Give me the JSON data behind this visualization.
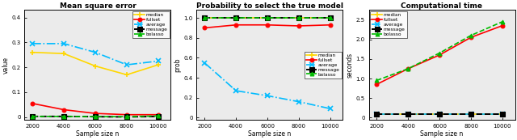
{
  "x": [
    2000,
    4000,
    6000,
    8000,
    10000
  ],
  "mse": {
    "median": [
      0.26,
      0.255,
      0.205,
      0.17,
      0.21
    ],
    "fullset": [
      0.055,
      0.03,
      0.015,
      0.01,
      0.01
    ],
    "average": [
      0.295,
      0.295,
      0.26,
      0.21,
      0.225
    ],
    "message": [
      0.003,
      0.003,
      0.002,
      0.001,
      0.003
    ],
    "bolasso": [
      0.003,
      0.003,
      0.002,
      0.002,
      0.005
    ]
  },
  "prob": {
    "median": [
      1.0,
      1.0,
      1.0,
      1.0,
      1.0
    ],
    "fullset": [
      0.9,
      0.93,
      0.93,
      0.92,
      0.93
    ],
    "average": [
      0.55,
      0.27,
      0.22,
      0.16,
      0.09
    ],
    "message": [
      1.0,
      1.0,
      1.0,
      1.0,
      1.0
    ],
    "bolasso": [
      1.0,
      1.0,
      1.0,
      1.0,
      1.0
    ]
  },
  "time": {
    "median": [
      0.1,
      0.1,
      0.1,
      0.1,
      0.1
    ],
    "fullset": [
      0.85,
      1.25,
      1.6,
      2.05,
      2.35
    ],
    "average": [
      0.1,
      0.1,
      0.1,
      0.1,
      0.1
    ],
    "message": [
      0.1,
      0.1,
      0.1,
      0.1,
      0.1
    ],
    "bolasso": [
      0.95,
      1.25,
      1.65,
      2.1,
      2.45
    ]
  },
  "colors": {
    "median": "#FFD700",
    "fullset": "#FF0000",
    "average": "#00BBFF",
    "message": "#000000",
    "bolasso": "#00BB00"
  },
  "markers": {
    "median": "+",
    "fullset": "o",
    "average": "x",
    "message": "s",
    "bolasso": "^"
  },
  "linestyles": {
    "median": "-",
    "fullset": "-",
    "average": "-.",
    "message": "--",
    "bolasso": "--"
  },
  "titles": [
    "Mean square error",
    "Probability to select the true model",
    "Computational time"
  ],
  "ylabels": [
    "value",
    "prob",
    "seconds"
  ],
  "xlabel": "Sample size n",
  "mse_ylim": [
    -0.01,
    0.43
  ],
  "prob_ylim": [
    -0.02,
    1.08
  ],
  "time_ylim": [
    -0.05,
    2.75
  ],
  "mse_yticks": [
    0.0,
    0.1,
    0.2,
    0.3,
    0.4
  ],
  "prob_yticks": [
    0.0,
    0.2,
    0.4,
    0.6,
    0.8,
    1.0
  ],
  "time_yticks": [
    0.0,
    0.5,
    1.0,
    1.5,
    2.0,
    2.5
  ],
  "xticks": [
    2000,
    4000,
    6000,
    8000,
    10000
  ],
  "legend_labels": [
    "median",
    "fullset",
    "average",
    "message",
    "bolasso"
  ],
  "bg_color": "#EBEBEB"
}
